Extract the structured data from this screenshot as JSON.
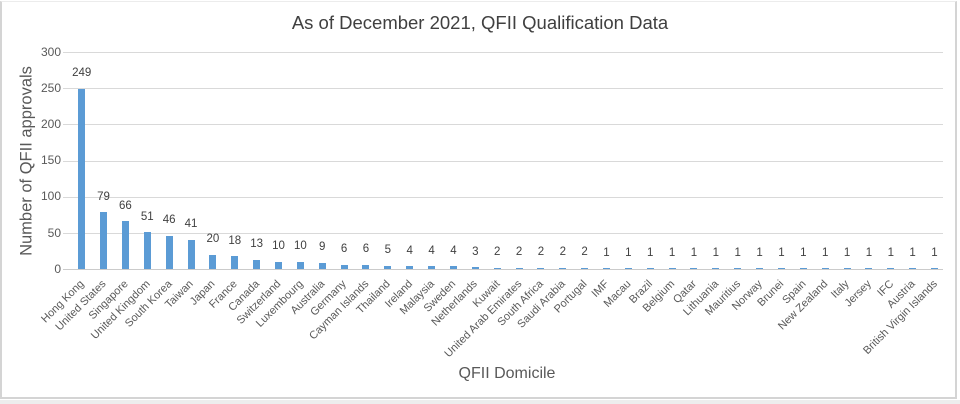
{
  "chart_data": {
    "type": "bar",
    "title": "As of December 2021, QFII Qualification Data",
    "xlabel": "QFII Domicile",
    "ylabel": "Number of QFII approvals",
    "categories": [
      "Hong Kong",
      "United States",
      "Singapore",
      "United Kingdom",
      "South Korea",
      "Taiwan",
      "Japan",
      "France",
      "Canada",
      "Switzerland",
      "Luxembourg",
      "Australia",
      "Germany",
      "Cayman Islands",
      "Thailand",
      "Ireland",
      "Malaysia",
      "Sweden",
      "Netherlands",
      "Kuwait",
      "United Arab Emirates",
      "South Africa",
      "Saudi Arabia",
      "Portugal",
      "IMF",
      "Macau",
      "Brazil",
      "Belgium",
      "Qatar",
      "Lithuania",
      "Mauritius",
      "Norway",
      "Brunei",
      "Spain",
      "New Zealand",
      "Italy",
      "Jersey",
      "IFC",
      "Austria",
      "British Virgin Islands"
    ],
    "values": [
      249,
      79,
      66,
      51,
      46,
      41,
      20,
      18,
      13,
      10,
      10,
      9,
      6,
      6,
      5,
      4,
      4,
      4,
      3,
      2,
      2,
      2,
      2,
      2,
      1,
      1,
      1,
      1,
      1,
      1,
      1,
      1,
      1,
      1,
      1,
      1,
      1,
      1,
      1,
      1
    ],
    "ylim": [
      0,
      300
    ],
    "yticks": [
      0,
      50,
      100,
      150,
      200,
      250,
      300
    ],
    "grid": true,
    "legend": false,
    "bar_color": "#5b9bd5",
    "gridline_color": "#d9d9d9",
    "axis_line_color": "#cbcbcb"
  }
}
